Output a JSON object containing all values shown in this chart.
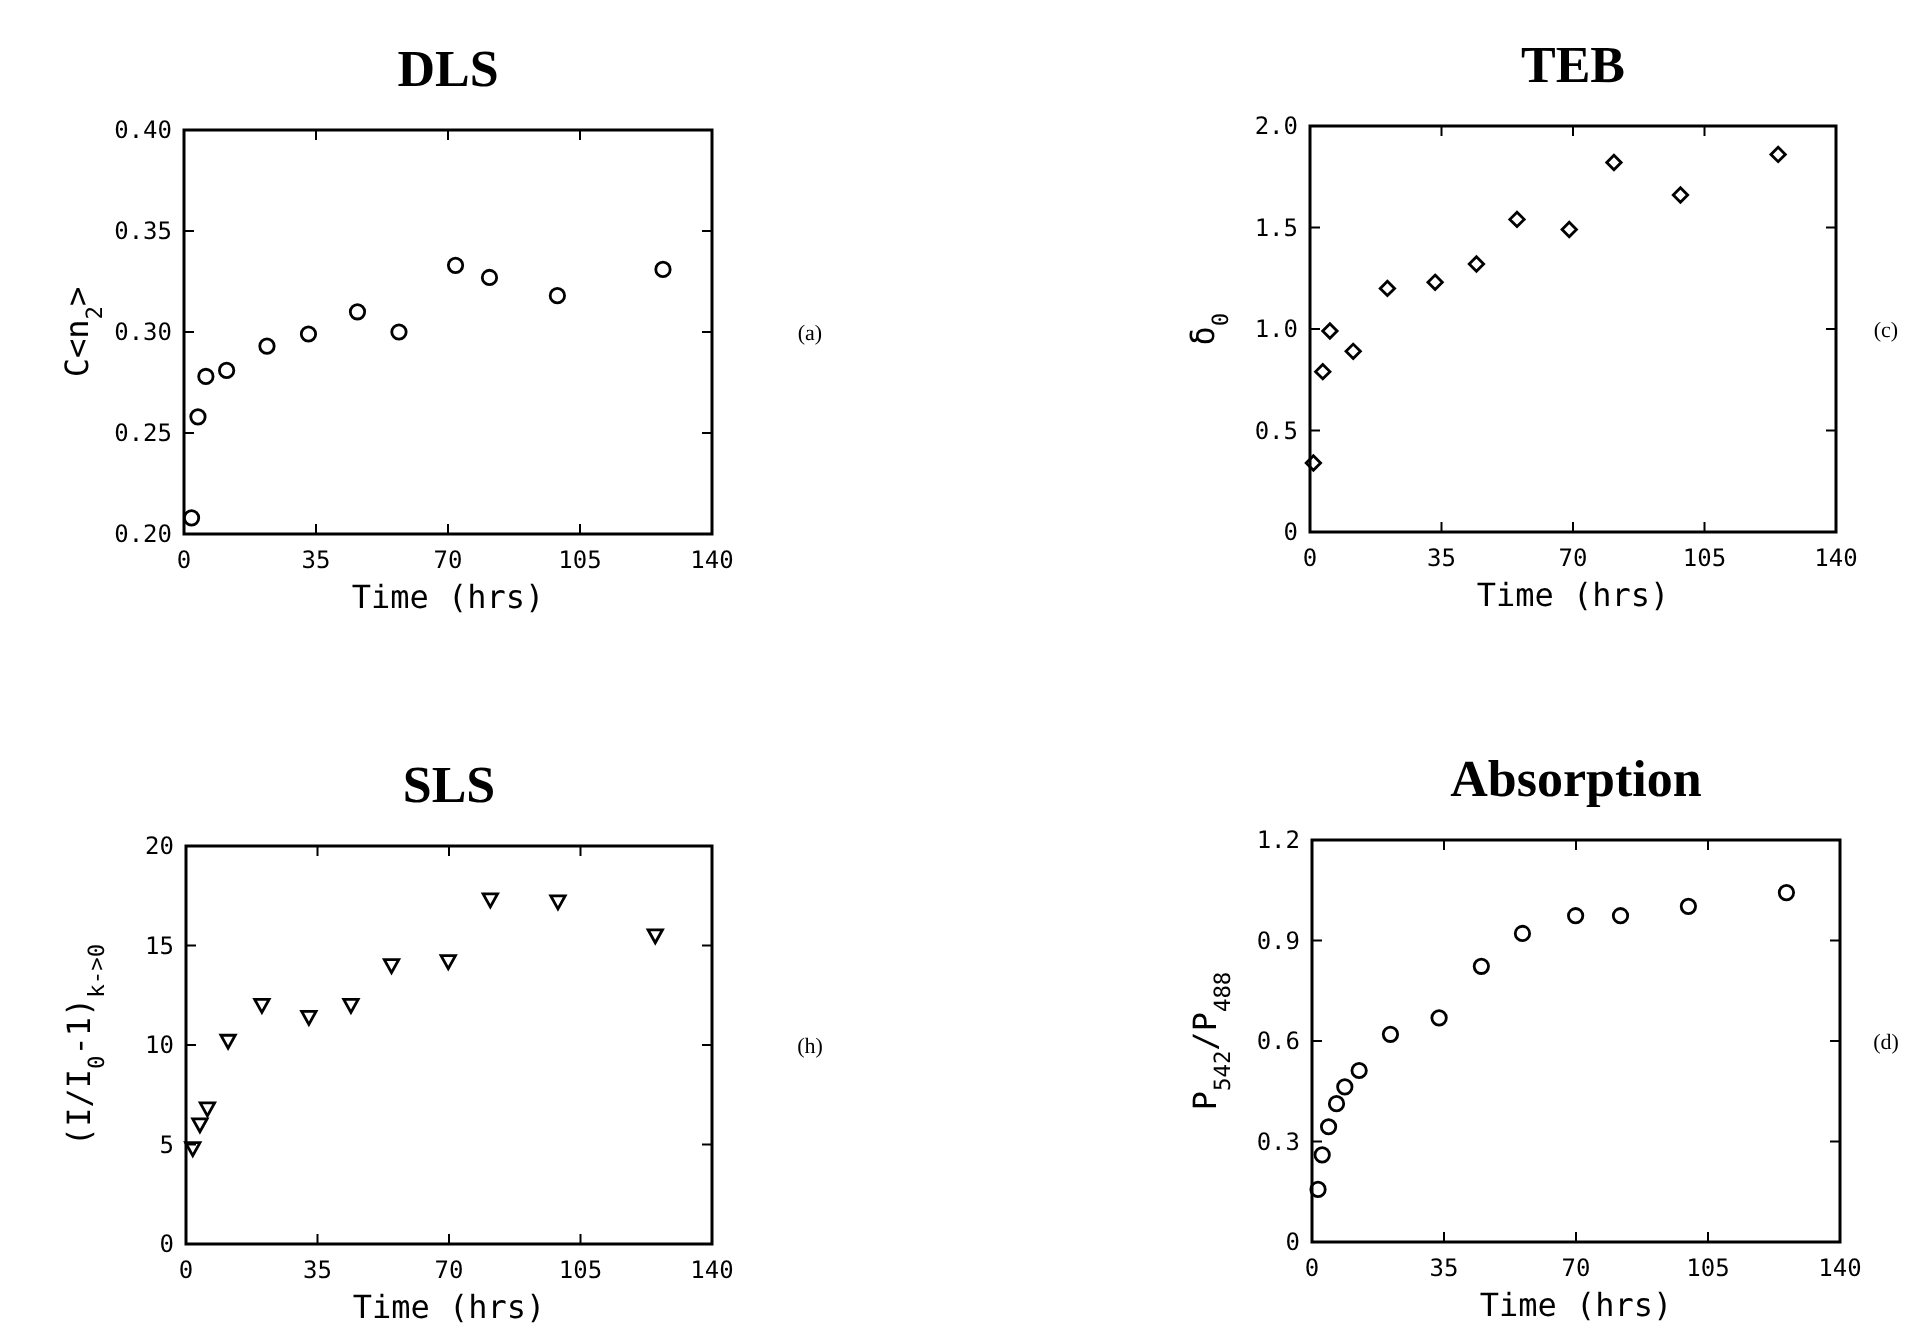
{
  "chart_data": [
    {
      "type": "scatter",
      "title": "DLS",
      "xlabel": "Time (hrs)",
      "ylabel": "C<n$_{2}$>",
      "annotations": [
        "(a)"
      ],
      "marker": "circle",
      "xlim": [
        0,
        140
      ],
      "xticks": [
        0,
        35,
        70,
        105,
        140
      ],
      "ylim": [
        0.2,
        0.4
      ],
      "yticks": [
        {
          "value": 0.2,
          "label": "0.20"
        },
        {
          "value": 0.25,
          "label": "0.25"
        },
        {
          "value": 0.3,
          "label": "0.30"
        },
        {
          "value": 0.35,
          "label": "0.35"
        },
        {
          "value": 0.4,
          "label": "0.40"
        }
      ],
      "series": [
        {
          "color": "#000000",
          "x": [
            2,
            3.7,
            5.8,
            11.3,
            22,
            33,
            46,
            57,
            72,
            81,
            99,
            127
          ],
          "values": [
            0.208,
            0.258,
            0.278,
            0.281,
            0.293,
            0.299,
            0.31,
            0.3,
            0.333,
            0.327,
            0.318,
            0.331
          ]
        }
      ]
    },
    {
      "type": "scatter",
      "title": "TEB",
      "xlabel": "Time (hrs)",
      "ylabel": "δ$_{0}$",
      "annotations": [
        "(c)"
      ],
      "marker": "diamond",
      "xlim": [
        0,
        140
      ],
      "xticks": [
        0,
        35,
        70,
        105,
        140
      ],
      "ylim": [
        0,
        2
      ],
      "yticks": [
        0,
        {
          "value": 0.5,
          "label": "0.5"
        },
        {
          "value": 1,
          "label": "1.0"
        },
        {
          "value": 1.5,
          "label": "1.5"
        },
        {
          "value": 2,
          "label": "2.0"
        }
      ],
      "series": [
        {
          "color": "#000000",
          "x": [
            0.9,
            3.4,
            5.3,
            11.5,
            20.6,
            33.3,
            44.3,
            55.1,
            69,
            80.9,
            98.6,
            124.6
          ],
          "values": [
            0.34,
            0.79,
            0.99,
            0.89,
            1.2,
            1.23,
            1.32,
            1.54,
            1.49,
            1.82,
            1.66,
            1.86
          ]
        }
      ]
    },
    {
      "type": "scatter",
      "title": "SLS",
      "xlabel": "Time (hrs)",
      "ylabel": "(I/I$_{0}$-1)$_{k->0}$",
      "annotations": [
        "(h)"
      ],
      "marker": "triangle",
      "xlim": [
        0,
        140
      ],
      "xticks": [
        0,
        35,
        70,
        105,
        140
      ],
      "ylim": [
        0,
        20
      ],
      "yticks": [
        0,
        5,
        10,
        15,
        20
      ],
      "series": [
        {
          "color": "#000000",
          "x": [
            1.8,
            3.7,
            5.7,
            11.2,
            20.2,
            32.7,
            43.9,
            54.7,
            69.8,
            81,
            99,
            124.9
          ],
          "values": [
            4.8,
            6,
            6.8,
            10.2,
            12,
            11.4,
            12,
            14,
            14.2,
            17.3,
            17.2,
            15.5
          ]
        }
      ]
    },
    {
      "type": "scatter",
      "title": "Absorption",
      "xlabel": "Time (hrs)",
      "ylabel": "P$_{542}$/P$_{488}$",
      "annotations": [
        "(d)"
      ],
      "marker": "circle",
      "xlim": [
        0,
        140
      ],
      "xticks": [
        0,
        35,
        70,
        105,
        140
      ],
      "ylim": [
        0,
        1.2
      ],
      "yticks": [
        0,
        {
          "value": 0.3,
          "label": "0.3"
        },
        {
          "value": 0.6,
          "label": "0.6"
        },
        {
          "value": 0.9,
          "label": "0.9"
        },
        {
          "value": 1.2,
          "label": "1.2"
        }
      ],
      "series": [
        {
          "color": "#000000",
          "x": [
            1.6,
            2.7,
            4.4,
            6.5,
            8.7,
            12.5,
            20.8,
            33.7,
            44.9,
            55.8,
            69.9,
            81.8,
            99.8,
            125.8
          ],
          "values": [
            0.157,
            0.26,
            0.344,
            0.413,
            0.463,
            0.512,
            0.62,
            0.669,
            0.823,
            0.921,
            0.974,
            0.974,
            1.002,
            1.043
          ]
        }
      ]
    }
  ]
}
